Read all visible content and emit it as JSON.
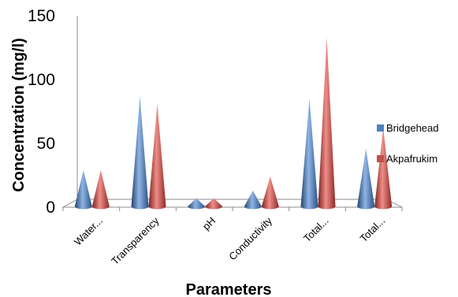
{
  "chart_data": {
    "type": "bar",
    "style": "3d-cone",
    "categories": [
      "Water...",
      "Transparency",
      "pH",
      "Conductivity",
      "Total...",
      "Total..."
    ],
    "series": [
      {
        "name": "Bridgehead",
        "color": "#4f81bd",
        "values": [
          29,
          87,
          7,
          13,
          85,
          46
        ]
      },
      {
        "name": "Akpafrukim",
        "color": "#c0504d",
        "values": [
          29,
          81,
          7,
          24,
          133,
          62
        ]
      }
    ],
    "title": "",
    "xlabel": "Parameters",
    "ylabel": "Concentration (mg/l)",
    "ylim": [
      0,
      150
    ],
    "yticks": [
      "0",
      "50",
      "100",
      "150"
    ],
    "grid": false,
    "legend_position": "right"
  }
}
